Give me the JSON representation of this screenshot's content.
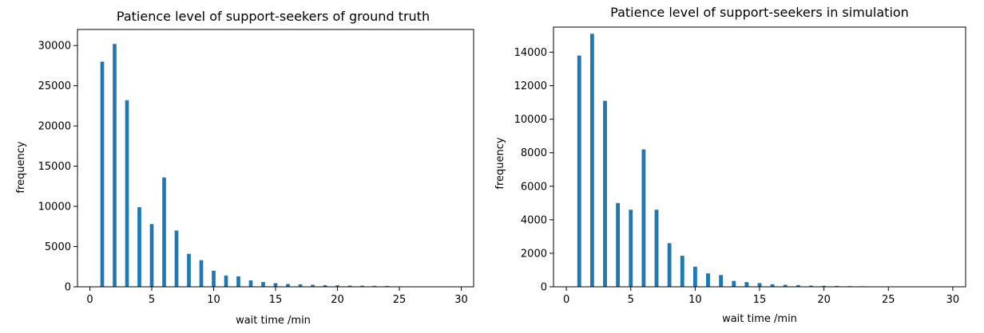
{
  "colors": {
    "bar": "#1f77b4",
    "background": "#ffffff",
    "axis": "#000000"
  },
  "chart_data": [
    {
      "type": "bar",
      "title": "Patience level of support-seekers of ground truth",
      "xlabel": "wait time /min",
      "ylabel": "frequency",
      "xlim": [
        -1,
        31
      ],
      "ylim": [
        0,
        32000
      ],
      "xticks": [
        0,
        5,
        10,
        15,
        20,
        25,
        30
      ],
      "yticks": [
        0,
        5000,
        10000,
        15000,
        20000,
        25000,
        30000
      ],
      "x": [
        1,
        2,
        3,
        4,
        5,
        6,
        7,
        8,
        9,
        10,
        11,
        12,
        13,
        14,
        15,
        16,
        17,
        18,
        19,
        20,
        21,
        22,
        23,
        24,
        25,
        26,
        27,
        28,
        29,
        30
      ],
      "values": [
        28000,
        30200,
        23200,
        9900,
        7800,
        13600,
        7000,
        4100,
        3300,
        2000,
        1400,
        1300,
        800,
        600,
        450,
        350,
        300,
        250,
        200,
        180,
        150,
        140,
        120,
        100,
        50,
        40,
        30,
        30,
        20,
        20
      ],
      "grid": false,
      "legend": "none"
    },
    {
      "type": "bar",
      "title": "Patience level of support-seekers in simulation",
      "xlabel": "wait time /min",
      "ylabel": "frequency",
      "xlim": [
        -1,
        31
      ],
      "ylim": [
        0,
        15500
      ],
      "xticks": [
        0,
        5,
        10,
        15,
        20,
        25,
        30
      ],
      "yticks": [
        0,
        2000,
        4000,
        6000,
        8000,
        10000,
        12000,
        14000
      ],
      "x": [
        1,
        2,
        3,
        4,
        5,
        6,
        7,
        8,
        9,
        10,
        11,
        12,
        13,
        14,
        15,
        16,
        17,
        18,
        19,
        20,
        21,
        22,
        23,
        24,
        25,
        26,
        27,
        28,
        29,
        30
      ],
      "values": [
        13800,
        15100,
        11100,
        5000,
        4600,
        8200,
        4600,
        2600,
        1850,
        1200,
        800,
        700,
        350,
        280,
        220,
        150,
        120,
        100,
        70,
        60,
        50,
        40,
        30,
        20,
        15,
        10,
        8,
        6,
        5,
        4
      ],
      "grid": false,
      "legend": "none"
    }
  ]
}
